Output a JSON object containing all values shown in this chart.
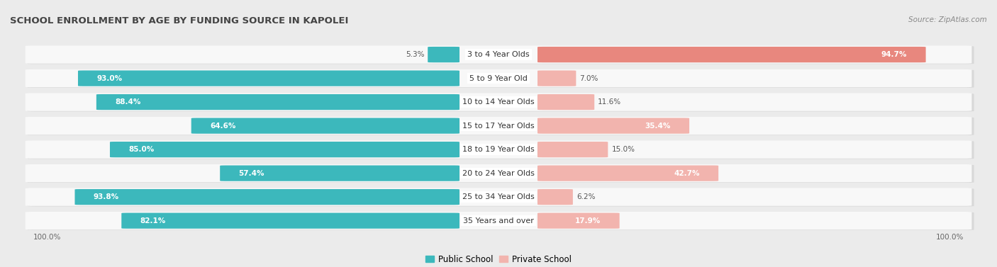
{
  "title": "SCHOOL ENROLLMENT BY AGE BY FUNDING SOURCE IN KAPOLEI",
  "source": "Source: ZipAtlas.com",
  "categories": [
    "3 to 4 Year Olds",
    "5 to 9 Year Old",
    "10 to 14 Year Olds",
    "15 to 17 Year Olds",
    "18 to 19 Year Olds",
    "20 to 24 Year Olds",
    "25 to 34 Year Olds",
    "35 Years and over"
  ],
  "public_values": [
    5.3,
    93.0,
    88.4,
    64.6,
    85.0,
    57.4,
    93.8,
    82.1
  ],
  "private_values": [
    94.7,
    7.0,
    11.6,
    35.4,
    15.0,
    42.7,
    6.2,
    17.9
  ],
  "public_color": "#3cb8bc",
  "private_color": "#e8877e",
  "private_light_color": "#f2b4ae",
  "bg_color": "#ebebeb",
  "row_bg": "#f8f8f8",
  "row_shadow": "#d8d8d8",
  "title_fontsize": 9.5,
  "label_fontsize": 8.0,
  "value_fontsize": 7.5,
  "legend_fontsize": 8.5,
  "source_fontsize": 7.5
}
